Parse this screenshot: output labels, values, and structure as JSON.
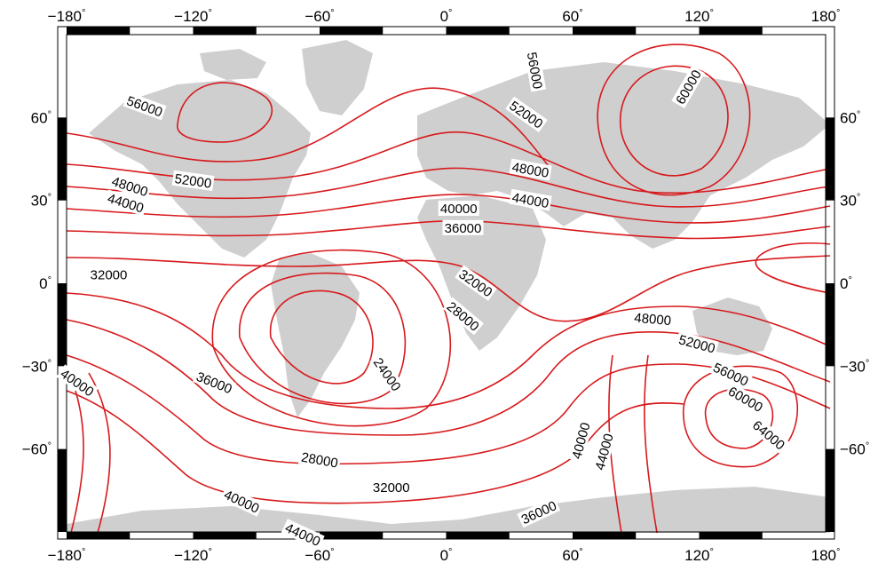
{
  "map": {
    "lon_ticks": [
      {
        "label": "−180",
        "lon": -180
      },
      {
        "label": "−120",
        "lon": -120
      },
      {
        "label": "−60",
        "lon": -60
      },
      {
        "label": "0",
        "lon": 0
      },
      {
        "label": "60",
        "lon": 60
      },
      {
        "label": "120",
        "lon": 120
      },
      {
        "label": "180",
        "lon": 180
      }
    ],
    "lat_ticks": [
      {
        "label": "60",
        "lat": 60
      },
      {
        "label": "30",
        "lat": 30
      },
      {
        "label": "0",
        "lat": 0
      },
      {
        "label": "−30",
        "lat": -30
      },
      {
        "label": "−60",
        "lat": -60
      }
    ],
    "degree_symbol": "°",
    "contour_labels": [
      {
        "text": "56000",
        "lon": -143,
        "lat": 64,
        "angle": 20
      },
      {
        "text": "48000",
        "lon": -150,
        "lat": 35,
        "angle": 18
      },
      {
        "text": "52000",
        "lon": -120,
        "lat": 37,
        "angle": 8
      },
      {
        "text": "44000",
        "lon": -152,
        "lat": 29,
        "angle": 17
      },
      {
        "text": "56000",
        "lon": 42,
        "lat": 77,
        "angle": 80
      },
      {
        "text": "60000",
        "lon": 115,
        "lat": 71,
        "angle": -60
      },
      {
        "text": "52000",
        "lon": 38,
        "lat": 61,
        "angle": 35
      },
      {
        "text": "48000",
        "lon": 40,
        "lat": 41,
        "angle": 10
      },
      {
        "text": "44000",
        "lon": 40,
        "lat": 30,
        "angle": 10
      },
      {
        "text": "40000",
        "lon": 6,
        "lat": 27,
        "angle": 0
      },
      {
        "text": "36000",
        "lon": 8,
        "lat": 20,
        "angle": 0
      },
      {
        "text": "32000",
        "lon": -160,
        "lat": 3,
        "angle": 0
      },
      {
        "text": "32000",
        "lon": 14,
        "lat": 0,
        "angle": 35
      },
      {
        "text": "28000",
        "lon": 8,
        "lat": -12,
        "angle": 40
      },
      {
        "text": "24000",
        "lon": -28,
        "lat": -33,
        "angle": 55
      },
      {
        "text": "48000",
        "lon": 98,
        "lat": -13,
        "angle": 5
      },
      {
        "text": "52000",
        "lon": 119,
        "lat": -22,
        "angle": 15
      },
      {
        "text": "56000",
        "lon": 135,
        "lat": -33,
        "angle": 25
      },
      {
        "text": "60000",
        "lon": 142,
        "lat": -42,
        "angle": 30
      },
      {
        "text": "64000",
        "lon": 153,
        "lat": -55,
        "angle": 40
      },
      {
        "text": "40000",
        "lon": 64,
        "lat": -57,
        "angle": -75
      },
      {
        "text": "44000",
        "lon": 75,
        "lat": -61,
        "angle": -75
      },
      {
        "text": "36000",
        "lon": 44,
        "lat": -83,
        "angle": -25
      },
      {
        "text": "36000",
        "lon": -110,
        "lat": -36,
        "angle": 22
      },
      {
        "text": "40000",
        "lon": -175,
        "lat": -36,
        "angle": 35
      },
      {
        "text": "28000",
        "lon": -60,
        "lat": -64,
        "angle": 10
      },
      {
        "text": "32000",
        "lon": -26,
        "lat": -74,
        "angle": 0
      },
      {
        "text": "40000",
        "lon": -97,
        "lat": -79,
        "angle": 25
      },
      {
        "text": "44000",
        "lon": -68,
        "lat": -91,
        "angle": 25
      }
    ],
    "colors": {
      "contour": "#d7191c",
      "land": "#cfcfcf",
      "ocean": "#ffffff",
      "frame": "#000000"
    }
  }
}
